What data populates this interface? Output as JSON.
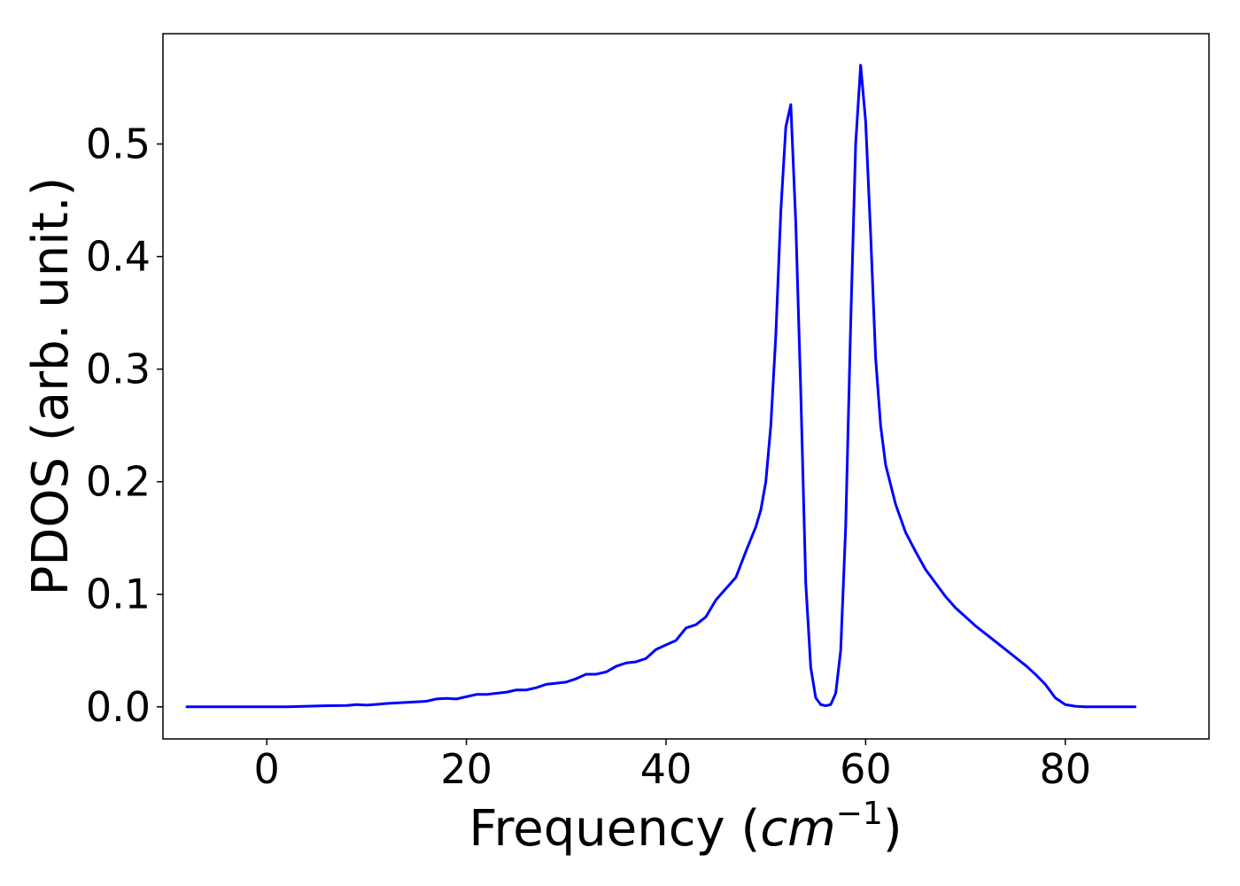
{
  "chart_data": {
    "type": "line",
    "title": "",
    "xlabel": "Frequency (",
    "xlabel_math": "cm",
    "xlabel_sup": "−1",
    "xlabel_end": ")",
    "ylabel": "PDOS (arb. unit.)",
    "xlim": [
      -10.4,
      94.4
    ],
    "ylim": [
      -0.0285,
      0.598
    ],
    "xticks": [
      0,
      20,
      40,
      60,
      80
    ],
    "xtick_labels": [
      "0",
      "20",
      "40",
      "60",
      "80"
    ],
    "yticks": [
      0.0,
      0.1,
      0.2,
      0.3,
      0.4,
      0.5
    ],
    "ytick_labels": [
      "0.0",
      "0.1",
      "0.2",
      "0.3",
      "0.4",
      "0.5"
    ],
    "grid": false,
    "legend": "none",
    "line_color": "#0000ff",
    "series": [
      {
        "x": [
          -8.0,
          -4.0,
          0.0,
          2.0,
          4.0,
          6.0,
          8.0,
          9.0,
          10.0,
          11.0,
          12.0,
          13.0,
          14.0,
          15.0,
          16.0,
          17.0,
          18.0,
          19.0,
          20.0,
          21.0,
          22.0,
          23.0,
          24.0,
          25.0,
          26.0,
          27.0,
          28.0,
          29.0,
          30.0,
          31.0,
          32.0,
          33.0,
          34.0,
          35.0,
          36.0,
          37.0,
          38.0,
          39.0,
          40.0,
          41.0,
          42.0,
          43.0,
          44.0,
          45.0,
          46.0,
          47.0,
          48.0,
          49.0,
          49.5,
          50.0,
          50.5,
          51.0,
          51.5,
          52.0,
          52.5,
          53.0,
          53.5,
          54.0,
          54.5,
          55.0,
          55.5,
          56.0,
          56.5,
          57.0,
          57.5,
          58.0,
          58.5,
          59.0,
          59.5,
          60.0,
          60.5,
          61.0,
          61.5,
          62.0,
          63.0,
          64.0,
          65.0,
          66.0,
          67.0,
          68.0,
          69.0,
          70.0,
          71.0,
          72.0,
          73.0,
          74.0,
          75.0,
          76.0,
          77.0,
          78.0,
          79.0,
          80.0,
          81.0,
          82.0,
          84.0,
          87.0
        ],
        "y": [
          0.0,
          0.0,
          0.0,
          0.0,
          0.0005,
          0.001,
          0.0012,
          0.002,
          0.0015,
          0.0022,
          0.003,
          0.0035,
          0.004,
          0.0045,
          0.005,
          0.007,
          0.0075,
          0.007,
          0.009,
          0.011,
          0.011,
          0.012,
          0.013,
          0.015,
          0.015,
          0.017,
          0.02,
          0.021,
          0.022,
          0.025,
          0.029,
          0.029,
          0.031,
          0.036,
          0.039,
          0.04,
          0.043,
          0.051,
          0.055,
          0.059,
          0.07,
          0.073,
          0.08,
          0.095,
          0.105,
          0.115,
          0.138,
          0.16,
          0.175,
          0.2,
          0.25,
          0.33,
          0.44,
          0.515,
          0.535,
          0.43,
          0.28,
          0.11,
          0.035,
          0.008,
          0.002,
          0.001,
          0.002,
          0.012,
          0.05,
          0.16,
          0.34,
          0.5,
          0.57,
          0.52,
          0.42,
          0.31,
          0.25,
          0.215,
          0.18,
          0.155,
          0.138,
          0.122,
          0.11,
          0.098,
          0.088,
          0.08,
          0.072,
          0.065,
          0.058,
          0.051,
          0.044,
          0.037,
          0.029,
          0.02,
          0.008,
          0.002,
          0.0005,
          0.0,
          0.0,
          0.0
        ]
      }
    ]
  }
}
